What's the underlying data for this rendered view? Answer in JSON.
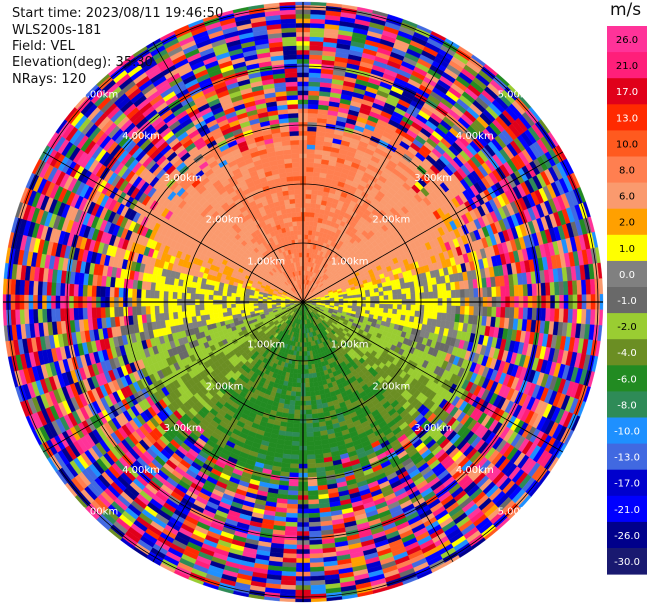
{
  "header": {
    "start_time": "Start time: 2023/08/11 19:46:50",
    "instrument": "WLS200s-181",
    "field": "Field: VEL",
    "elevation": "Elevation(deg): 35.30",
    "nrays": "NRays: 120"
  },
  "colorbar": {
    "unit": "m/s",
    "ticks": [
      "26.0",
      "21.0",
      "17.0",
      "13.0",
      "10.0",
      "8.0",
      "6.0",
      "2.0",
      "1.0",
      "0.0",
      "-1.0",
      "-2.0",
      "-4.0",
      "-6.0",
      "-8.0",
      "-10.0",
      "-13.0",
      "-17.0",
      "-21.0",
      "-26.0",
      "-30.0"
    ],
    "colors": [
      "#ff3399",
      "#ff1f7a",
      "#e0001a",
      "#ff2a00",
      "#ff5a1f",
      "#ff7f50",
      "#fa9a6e",
      "#ffa000",
      "#ffff00",
      "#808080",
      "#696969",
      "#9acd32",
      "#6b8e23",
      "#228b22",
      "#2e8b57",
      "#1e90ff",
      "#4169e1",
      "#0000cd",
      "#0000ff",
      "#00008b",
      "#191970"
    ]
  },
  "chart_data": {
    "type": "heatmap",
    "projection": "polar-ppi",
    "field": "VEL",
    "units": "m/s",
    "nrays": 120,
    "range_rings_km": [
      "1.00km",
      "2.00km",
      "3.00km",
      "4.00km",
      "5.00km"
    ],
    "grid": true,
    "pattern": {
      "near_field_north": "positive 1 to 8 m/s (yellow/orange/salmon)",
      "near_field_south": "negative -2 to -8 m/s (olive/green)",
      "near_field_east_west": "near 0 m/s (gray)",
      "far_field": "noisy, full colour range -30 to 26 m/s"
    }
  }
}
